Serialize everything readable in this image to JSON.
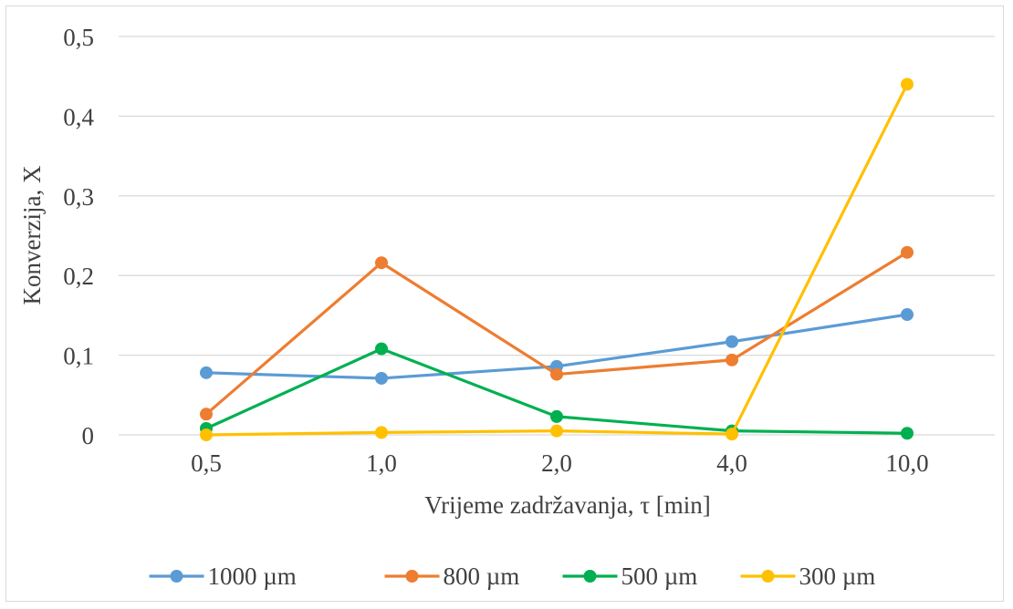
{
  "chart_data": {
    "type": "line",
    "title": "",
    "xlabel": "Vrijeme zadržavanja, τ [min]",
    "ylabel": "Konverzija, X",
    "categories": [
      "0,5",
      "1,0",
      "2,0",
      "4,0",
      "10,0"
    ],
    "ylim": [
      0,
      0.5
    ],
    "yticks": [
      0,
      0.1,
      0.2,
      0.3,
      0.4,
      0.5
    ],
    "ytick_labels": [
      "0",
      "0,1",
      "0,2",
      "0,3",
      "0,4",
      "0,5"
    ],
    "grid": "horizontal",
    "legend": "bottom",
    "series": [
      {
        "name": "1000 µm",
        "color": "#5b9bd5",
        "values": [
          0.078,
          0.071,
          0.086,
          0.117,
          0.151
        ]
      },
      {
        "name": "800 µm",
        "color": "#ed7d31",
        "values": [
          0.026,
          0.216,
          0.076,
          0.094,
          0.229
        ]
      },
      {
        "name": "500 µm",
        "color": "#00b050",
        "values": [
          0.008,
          0.108,
          0.023,
          0.005,
          0.002
        ]
      },
      {
        "name": "300 µm",
        "color": "#ffc000",
        "values": [
          0.0,
          0.003,
          0.005,
          0.001,
          0.44
        ]
      }
    ]
  }
}
